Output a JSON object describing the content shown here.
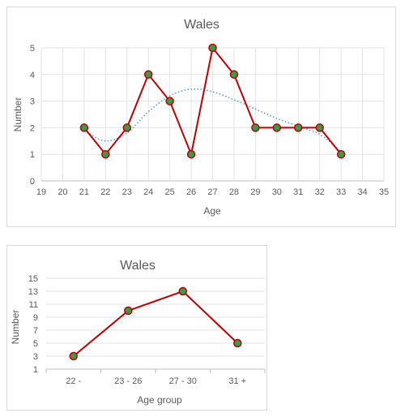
{
  "chart_data": [
    {
      "type": "line",
      "title": "Wales",
      "xlabel": "Age",
      "ylabel": "Number",
      "xlim": [
        19,
        35
      ],
      "ylim": [
        0,
        5
      ],
      "x_ticks": [
        19,
        20,
        21,
        22,
        23,
        24,
        25,
        26,
        27,
        28,
        29,
        30,
        31,
        32,
        33,
        34,
        35
      ],
      "y_ticks": [
        0,
        1,
        2,
        3,
        4,
        5
      ],
      "grid": true,
      "legend": "none",
      "series": [
        {
          "x": [
            21,
            22,
            23,
            24,
            25,
            26,
            27,
            28,
            29,
            30,
            31,
            32,
            33
          ],
          "y": [
            2,
            1,
            2,
            4,
            3,
            1,
            5,
            4,
            2,
            2,
            2,
            2,
            1
          ],
          "color": "#c00000",
          "marker_fill": "#3a9a4a",
          "style": "solid"
        },
        {
          "trendline": "polynomial",
          "style": "dotted",
          "color": "#5b9bd5",
          "x": [
            21,
            22,
            23,
            24,
            25,
            26,
            27,
            28,
            29,
            30,
            31,
            32,
            33
          ],
          "y": [
            1.9,
            1.5,
            1.8,
            2.6,
            3.2,
            3.45,
            3.35,
            3.05,
            2.7,
            2.35,
            2.05,
            1.75,
            1.1
          ]
        }
      ]
    },
    {
      "type": "line",
      "title": "Wales",
      "xlabel": "Age group",
      "ylabel": "Number",
      "categories": [
        "22 -",
        "23 - 26",
        "27 - 30",
        "31 +"
      ],
      "ylim": [
        1,
        15
      ],
      "y_ticks": [
        1,
        3,
        5,
        7,
        9,
        11,
        13,
        15
      ],
      "grid": true,
      "legend": "none",
      "series": [
        {
          "values": [
            3,
            10,
            13,
            5
          ],
          "color": "#c00000",
          "marker_fill": "#3a9a4a"
        }
      ]
    }
  ]
}
